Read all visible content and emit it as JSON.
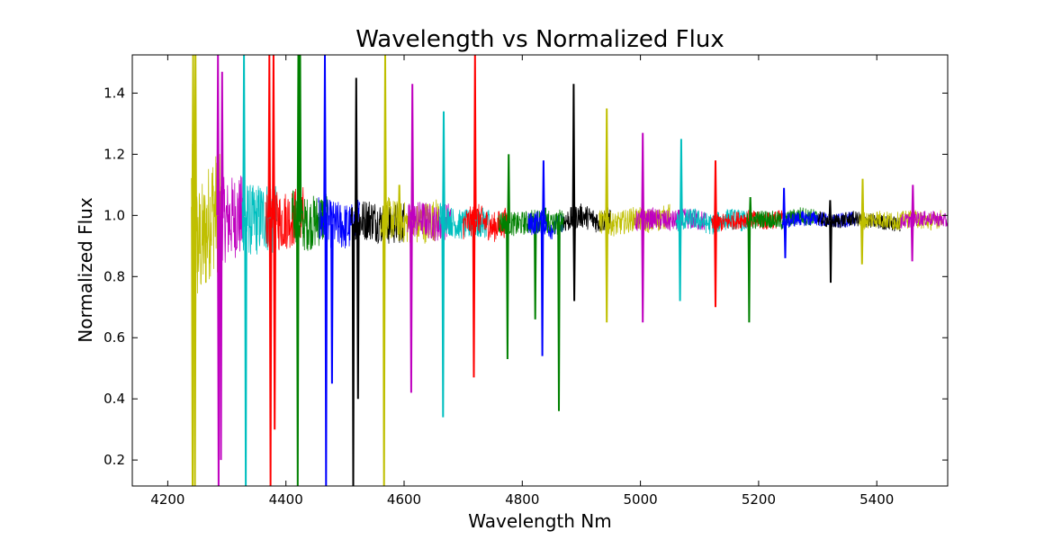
{
  "chart_data": {
    "type": "line",
    "title": "Wavelength vs Normalized Flux",
    "xlabel": "Wavelength Nm",
    "ylabel": "Normalized Flux",
    "xlim": [
      4140,
      5520
    ],
    "ylim": [
      0.115,
      1.525
    ],
    "xticks": [
      4200,
      4400,
      4600,
      4800,
      5000,
      5200,
      5400
    ],
    "yticks": [
      0.2,
      0.4,
      0.6,
      0.8,
      1.0,
      1.2,
      1.4
    ],
    "grid": false,
    "legend": "none",
    "colors": {
      "y": "#bfbf00",
      "m": "#bf00bf",
      "c": "#00bfbf",
      "r": "#ff0000",
      "g": "#008000",
      "b": "#0000ff",
      "k": "#000000"
    },
    "series": [
      {
        "color": "y",
        "x": [
          4240,
          4250,
          4262,
          4275,
          4290
        ],
        "y": [
          1.06,
          0.9,
          0.92,
          1.02,
          1.0
        ],
        "noise": 0.2,
        "dips": [
          {
            "x": 4242,
            "y": 0.115
          },
          {
            "x": 4246,
            "y": 0.115
          }
        ],
        "spikes": [
          {
            "x": 4243,
            "y": 1.525
          },
          {
            "x": 4247,
            "y": 1.525
          }
        ]
      },
      {
        "color": "m",
        "x": [
          4285,
          4300,
          4315,
          4330
        ],
        "y": [
          1.0,
          0.98,
          1.0,
          0.99
        ],
        "noise": 0.14,
        "dips": [
          {
            "x": 4286,
            "y": 0.115
          },
          {
            "x": 4290,
            "y": 0.2
          }
        ],
        "spikes": [
          {
            "x": 4285,
            "y": 1.525
          },
          {
            "x": 4292,
            "y": 1.47
          }
        ]
      },
      {
        "color": "c",
        "x": [
          4326,
          4345,
          4365,
          4385
        ],
        "y": [
          1.0,
          0.98,
          1.0,
          0.98
        ],
        "noise": 0.12,
        "dips": [
          {
            "x": 4332,
            "y": 0.115
          }
        ],
        "spikes": [
          {
            "x": 4329,
            "y": 1.525
          }
        ]
      },
      {
        "color": "r",
        "x": [
          4365,
          4385,
          4405,
          4430
        ],
        "y": [
          1.0,
          0.98,
          0.99,
          1.0
        ],
        "noise": 0.1,
        "dips": [
          {
            "x": 4374,
            "y": 0.115
          },
          {
            "x": 4381,
            "y": 0.3
          }
        ],
        "spikes": [
          {
            "x": 4372,
            "y": 1.525
          },
          {
            "x": 4379,
            "y": 1.525
          }
        ]
      },
      {
        "color": "g",
        "x": [
          4410,
          4430,
          4450,
          4470
        ],
        "y": [
          1.0,
          0.97,
          0.98,
          1.0
        ],
        "noise": 0.09,
        "dips": [
          {
            "x": 4420,
            "y": 0.115
          }
        ],
        "spikes": [
          {
            "x": 4421,
            "y": 1.525
          },
          {
            "x": 4424,
            "y": 1.525
          }
        ]
      },
      {
        "color": "b",
        "x": [
          4455,
          4480,
          4510,
          4525
        ],
        "y": [
          0.98,
          0.97,
          0.96,
          0.98
        ],
        "noise": 0.08,
        "dips": [
          {
            "x": 4468,
            "y": 0.115
          },
          {
            "x": 4478,
            "y": 0.45
          }
        ],
        "spikes": [
          {
            "x": 4466,
            "y": 1.525
          }
        ]
      },
      {
        "color": "k",
        "x": [
          4510,
          4540,
          4570,
          4600
        ],
        "y": [
          0.97,
          0.99,
          0.97,
          0.98
        ],
        "noise": 0.07,
        "dips": [
          {
            "x": 4514,
            "y": 0.115
          },
          {
            "x": 4522,
            "y": 0.4
          }
        ],
        "spikes": [
          {
            "x": 4519,
            "y": 1.45
          }
        ]
      },
      {
        "color": "y",
        "x": [
          4560,
          4590,
          4620,
          4660
        ],
        "y": [
          1.0,
          0.98,
          0.97,
          0.99
        ],
        "noise": 0.07,
        "dips": [
          {
            "x": 4566,
            "y": 0.115
          }
        ],
        "spikes": [
          {
            "x": 4568,
            "y": 1.525
          },
          {
            "x": 4592,
            "y": 1.1
          }
        ]
      },
      {
        "color": "m",
        "x": [
          4605,
          4630,
          4660,
          4680
        ],
        "y": [
          0.98,
          0.99,
          0.97,
          0.99
        ],
        "noise": 0.06,
        "dips": [
          {
            "x": 4612,
            "y": 0.42
          }
        ],
        "spikes": [
          {
            "x": 4614,
            "y": 1.43
          }
        ]
      },
      {
        "color": "c",
        "x": [
          4660,
          4690,
          4720,
          4745
        ],
        "y": [
          1.0,
          0.97,
          0.97,
          0.98
        ],
        "noise": 0.05,
        "dips": [
          {
            "x": 4666,
            "y": 0.34
          }
        ],
        "spikes": [
          {
            "x": 4667,
            "y": 1.34
          }
        ]
      },
      {
        "color": "r",
        "x": [
          4700,
          4725,
          4750,
          4775
        ],
        "y": [
          0.97,
          0.99,
          0.96,
          0.98
        ],
        "noise": 0.05,
        "dips": [
          {
            "x": 4718,
            "y": 0.47
          }
        ],
        "spikes": [
          {
            "x": 4720,
            "y": 1.525
          }
        ]
      },
      {
        "color": "g",
        "x": [
          4760,
          4790,
          4815,
          4845
        ],
        "y": [
          0.98,
          0.97,
          0.98,
          0.99
        ],
        "noise": 0.04,
        "dips": [
          {
            "x": 4775,
            "y": 0.53
          },
          {
            "x": 4822,
            "y": 0.66
          }
        ],
        "spikes": [
          {
            "x": 4777,
            "y": 1.2
          }
        ]
      },
      {
        "color": "b",
        "x": [
          4810,
          4830,
          4850,
          4870
        ],
        "y": [
          0.97,
          0.98,
          0.96,
          0.97
        ],
        "noise": 0.04,
        "dips": [
          {
            "x": 4834,
            "y": 0.54
          }
        ],
        "spikes": [
          {
            "x": 4836,
            "y": 1.18
          }
        ]
      },
      {
        "color": "g",
        "x": [
          4840,
          4855,
          4870
        ],
        "y": [
          0.98,
          0.97,
          0.99
        ],
        "noise": 0.04,
        "dips": [
          {
            "x": 4862,
            "y": 0.36
          }
        ],
        "spikes": []
      },
      {
        "color": "k",
        "x": [
          4870,
          4900,
          4930,
          4950
        ],
        "y": [
          0.98,
          1.0,
          0.98,
          0.99
        ],
        "noise": 0.04,
        "dips": [
          {
            "x": 4888,
            "y": 0.72
          }
        ],
        "spikes": [
          {
            "x": 4887,
            "y": 1.43
          }
        ]
      },
      {
        "color": "y",
        "x": [
          4930,
          4960,
          4990,
          5020,
          5050
        ],
        "y": [
          0.98,
          0.97,
          0.99,
          0.98,
          1.0
        ],
        "noise": 0.04,
        "dips": [
          {
            "x": 4943,
            "y": 0.65
          }
        ],
        "spikes": [
          {
            "x": 4943,
            "y": 1.35
          }
        ]
      },
      {
        "color": "m",
        "x": [
          4990,
          5020,
          5050,
          5080,
          5110
        ],
        "y": [
          0.98,
          0.99,
          0.98,
          0.99,
          0.98
        ],
        "noise": 0.035,
        "dips": [
          {
            "x": 5004,
            "y": 0.65
          }
        ],
        "spikes": [
          {
            "x": 5004,
            "y": 1.27
          }
        ]
      },
      {
        "color": "c",
        "x": [
          5060,
          5090,
          5120,
          5150,
          5180
        ],
        "y": [
          0.98,
          0.99,
          0.97,
          0.99,
          0.98
        ],
        "noise": 0.035,
        "dips": [
          {
            "x": 5067,
            "y": 0.72
          }
        ],
        "spikes": [
          {
            "x": 5069,
            "y": 1.25
          }
        ]
      },
      {
        "color": "r",
        "x": [
          5120,
          5150,
          5180,
          5210,
          5240
        ],
        "y": [
          0.97,
          0.98,
          0.99,
          0.98,
          0.99
        ],
        "noise": 0.03,
        "dips": [
          {
            "x": 5127,
            "y": 0.7
          }
        ],
        "spikes": [
          {
            "x": 5127,
            "y": 1.18
          }
        ]
      },
      {
        "color": "g",
        "x": [
          5180,
          5210,
          5240,
          5270,
          5300
        ],
        "y": [
          0.98,
          0.99,
          0.98,
          1.0,
          0.99
        ],
        "noise": 0.03,
        "dips": [
          {
            "x": 5184,
            "y": 0.65
          }
        ],
        "spikes": [
          {
            "x": 5186,
            "y": 1.06
          }
        ]
      },
      {
        "color": "b",
        "x": [
          5240,
          5270,
          5300,
          5330,
          5365
        ],
        "y": [
          0.98,
          0.99,
          0.99,
          0.98,
          0.99
        ],
        "noise": 0.025,
        "dips": [
          {
            "x": 5245,
            "y": 0.86
          }
        ],
        "spikes": [
          {
            "x": 5243,
            "y": 1.09
          }
        ]
      },
      {
        "color": "k",
        "x": [
          5300,
          5330,
          5360,
          5400,
          5440
        ],
        "y": [
          0.99,
          0.98,
          0.99,
          0.98,
          0.97
        ],
        "noise": 0.025,
        "dips": [
          {
            "x": 5322,
            "y": 0.78
          }
        ],
        "spikes": [
          {
            "x": 5321,
            "y": 1.05
          }
        ]
      },
      {
        "color": "y",
        "x": [
          5370,
          5400,
          5430,
          5460,
          5490,
          5510
        ],
        "y": [
          0.98,
          0.99,
          0.98,
          0.99,
          0.98,
          0.99
        ],
        "noise": 0.03,
        "dips": [
          {
            "x": 5375,
            "y": 0.84
          }
        ],
        "spikes": [
          {
            "x": 5376,
            "y": 1.12
          }
        ]
      },
      {
        "color": "m",
        "x": [
          5440,
          5470,
          5500,
          5520
        ],
        "y": [
          0.98,
          0.99,
          0.99,
          0.98
        ],
        "noise": 0.025,
        "dips": [
          {
            "x": 5460,
            "y": 0.85
          }
        ],
        "spikes": [
          {
            "x": 5461,
            "y": 1.1
          }
        ]
      }
    ]
  }
}
